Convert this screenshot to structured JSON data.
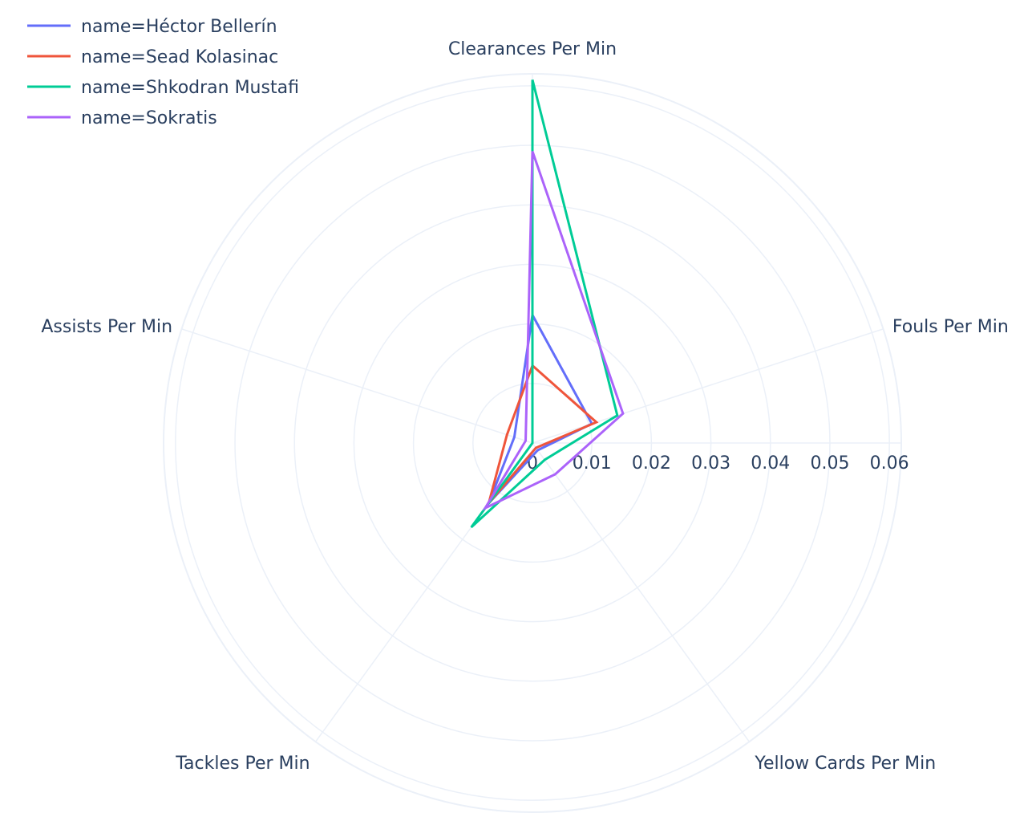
{
  "chart_data": {
    "type": "radar",
    "categories": [
      "Clearances Per Min",
      "Fouls Per Min",
      "Yellow Cards Per Min",
      "Tackles Per Min",
      "Assists Per Min"
    ],
    "radial_range": [
      0,
      0.062
    ],
    "radial_ticks": [
      {
        "value": 0,
        "label": "0"
      },
      {
        "value": 0.01,
        "label": "0.01"
      },
      {
        "value": 0.02,
        "label": "0.02"
      },
      {
        "value": 0.03,
        "label": "0.03"
      },
      {
        "value": 0.04,
        "label": "0.04"
      },
      {
        "value": 0.05,
        "label": "0.05"
      },
      {
        "value": 0.06,
        "label": "0.06"
      }
    ],
    "legend_position": "top-left",
    "grid": true,
    "series": [
      {
        "name": "name=Héctor Bellerín",
        "color": "#636efa",
        "values": [
          0.0215,
          0.0105,
          0.0015,
          0.0125,
          0.0032
        ]
      },
      {
        "name": "name=Sead Kolasinac",
        "color": "#ef553b",
        "values": [
          0.013,
          0.0113,
          0.001,
          0.0125,
          0.0045
        ]
      },
      {
        "name": "name=Shkodran Mustafi",
        "color": "#00cc96",
        "values": [
          0.061,
          0.015,
          0.0035,
          0.0175,
          0.0
        ]
      },
      {
        "name": "name=Sokratis",
        "color": "#ab63fa",
        "values": [
          0.049,
          0.016,
          0.0065,
          0.0135,
          0.0012
        ]
      }
    ]
  }
}
